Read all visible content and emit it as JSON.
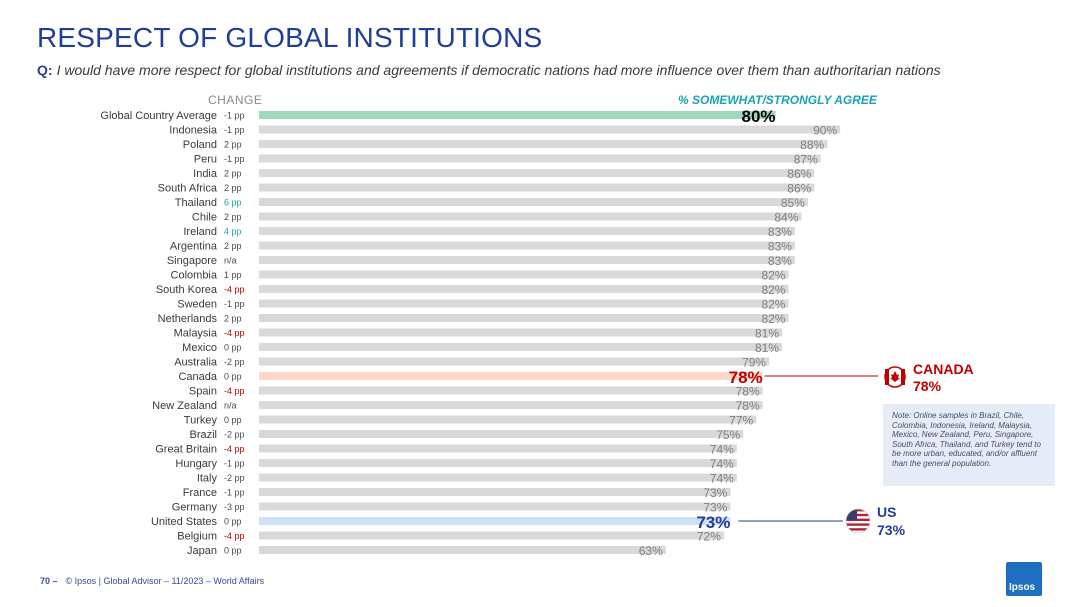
{
  "header": {
    "title": "RESPECT OF GLOBAL INSTITUTIONS",
    "question_label": "Q:",
    "question_text": "I would have more respect for global institutions and agreements if democratic nations had more influence over them than authoritarian nations"
  },
  "column_headers": {
    "change": "CHANGE",
    "agree": "% SOMEWHAT/STRONGLY AGREE"
  },
  "chart_data": {
    "type": "bar",
    "orientation": "horizontal",
    "categories": [
      "Global Country Average",
      "Indonesia",
      "Poland",
      "Peru",
      "India",
      "South Africa",
      "Thailand",
      "Chile",
      "Ireland",
      "Argentina",
      "Singapore",
      "Colombia",
      "South Korea",
      "Sweden",
      "Netherlands",
      "Malaysia",
      "Mexico",
      "Australia",
      "Canada",
      "Spain",
      "New Zealand",
      "Turkey",
      "Brazil",
      "Great Britain",
      "Hungary",
      "Italy",
      "France",
      "Germany",
      "United States",
      "Belgium",
      "Japan"
    ],
    "values": [
      80,
      90,
      88,
      87,
      86,
      86,
      85,
      84,
      83,
      83,
      83,
      82,
      82,
      82,
      82,
      81,
      81,
      79,
      78,
      78,
      78,
      77,
      75,
      74,
      74,
      74,
      73,
      73,
      73,
      72,
      63
    ],
    "value_labels": [
      "80%",
      "90%",
      "88%",
      "87%",
      "86%",
      "86%",
      "85%",
      "84%",
      "83%",
      "83%",
      "83%",
      "82%",
      "82%",
      "82%",
      "82%",
      "81%",
      "81%",
      "79%",
      "78%",
      "78%",
      "78%",
      "77%",
      "75%",
      "74%",
      "74%",
      "74%",
      "73%",
      "73%",
      "73%",
      "72%",
      "63%"
    ],
    "change_labels": [
      "-1 pp",
      "-1 pp",
      "2 pp",
      "-1 pp",
      "2 pp",
      "2 pp",
      "6 pp",
      "2 pp",
      "4 pp",
      "2 pp",
      "n/a",
      "1 pp",
      "-4 pp",
      "-1 pp",
      "2 pp",
      "-4 pp",
      "0 pp",
      "-2 pp",
      "0 pp",
      "-4 pp",
      "n/a",
      "0 pp",
      "-2 pp",
      "-4 pp",
      "-1 pp",
      "-2 pp",
      "-1 pp",
      "-3 pp",
      "0 pp",
      "-4 pp",
      "0 pp"
    ],
    "change_status": [
      "neutral",
      "neutral",
      "neutral",
      "neutral",
      "neutral",
      "neutral",
      "up",
      "neutral",
      "up",
      "neutral",
      "neutral",
      "neutral",
      "down",
      "neutral",
      "neutral",
      "down",
      "neutral",
      "neutral",
      "neutral",
      "down",
      "neutral",
      "neutral",
      "neutral",
      "down",
      "neutral",
      "neutral",
      "neutral",
      "neutral",
      "neutral",
      "down",
      "neutral"
    ],
    "highlights": {
      "Global Country Average": "average",
      "Canada": "canada",
      "United States": "us"
    },
    "xlim": [
      0,
      100
    ]
  },
  "colors": {
    "bar_default": "#d9d9d9",
    "bar_average": "#9ed9bf",
    "bar_canada": "#fbd9c8",
    "bar_us": "#cfdff5",
    "label_default": "#7f7f7f",
    "change_up": "#1aa3b5",
    "change_down": "#c00000",
    "canada": "#c00000",
    "us": "#1f3d99"
  },
  "callouts": {
    "canada": {
      "label": "CANADA",
      "value": "78%",
      "icon": "canada-flag-icon"
    },
    "us": {
      "label": "US",
      "value": "73%",
      "icon": "us-flag-icon"
    }
  },
  "note": "Note: Online samples in Brazil, Chile, Colombia, Indonesia, Ireland, Malaysia, Mexico, New Zealand, Peru, Singapore, South Africa, Thailand, and Turkey tend to be more urban, educated, and/or affluent than the general population.",
  "footer": {
    "page": "70 –",
    "text": "© Ipsos | Global Advisor – 11/2023 – World Affairs"
  },
  "logo": {
    "text": "Ipsos"
  }
}
